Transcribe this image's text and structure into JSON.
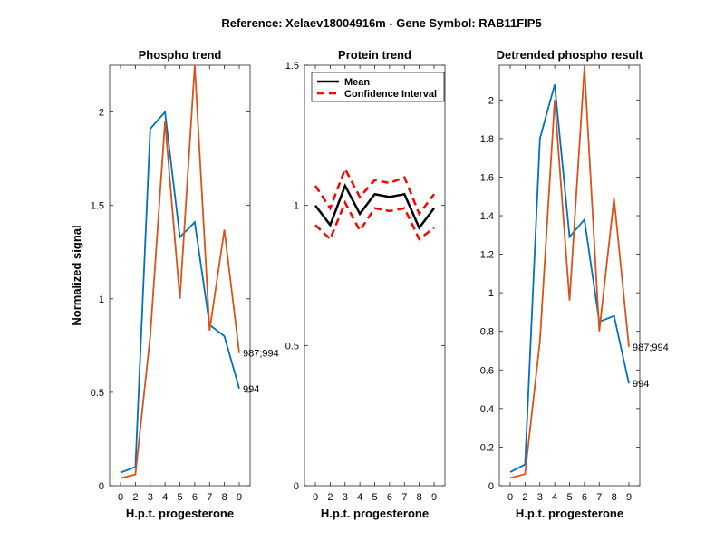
{
  "figure_title": "Reference:  Xelaev18004916m - Gene Symbol:  RAB11FIP5",
  "colors": {
    "blue": "#0072BD",
    "orange": "#D95319",
    "black": "#000000",
    "red": "#FF0000"
  },
  "chart_data": [
    {
      "type": "line",
      "title": "Phospho trend",
      "xlabel": "H.p.t. progesterone",
      "ylabel": "Normalized signal",
      "categories": [
        "0",
        "2",
        "3",
        "4",
        "5",
        "6",
        "7",
        "8",
        "9"
      ],
      "ylim": [
        0,
        2.25
      ],
      "yticks": [
        0,
        0.5,
        1,
        1.5,
        2
      ],
      "ytick_labels": [
        "0",
        "0.5",
        "1",
        "1.5",
        "2"
      ],
      "series": [
        {
          "name": "994",
          "color": "#0072BD",
          "values": [
            0.07,
            0.1,
            1.91,
            2.0,
            1.33,
            1.41,
            0.86,
            0.8,
            0.52
          ],
          "end_label": "994"
        },
        {
          "name": "987;994",
          "color": "#D95319",
          "values": [
            0.04,
            0.06,
            0.8,
            1.95,
            1.0,
            2.25,
            0.83,
            1.37,
            0.71
          ],
          "end_label": "987;994"
        }
      ]
    },
    {
      "type": "line",
      "title": "Protein trend",
      "xlabel": "H.p.t. progesterone",
      "ylabel": "",
      "categories": [
        "0",
        "2",
        "3",
        "4",
        "5",
        "6",
        "7",
        "8",
        "9"
      ],
      "ylim": [
        0,
        1.5
      ],
      "yticks": [
        0,
        0.5,
        1,
        1.5
      ],
      "ytick_labels": [
        "0",
        "0.5",
        "1",
        "1.5"
      ],
      "legend": {
        "placement": "top-left",
        "entries": [
          "Mean",
          "Confidence Interval"
        ]
      },
      "series": [
        {
          "name": "Mean",
          "color": "#000000",
          "style": "solid",
          "values": [
            1.0,
            0.93,
            1.07,
            0.97,
            1.04,
            1.03,
            1.04,
            0.92,
            0.99
          ]
        },
        {
          "name": "Confidence Interval",
          "color": "#FF0000",
          "style": "dashed",
          "values": [
            1.07,
            0.99,
            1.13,
            1.03,
            1.09,
            1.08,
            1.1,
            0.97,
            1.04
          ]
        },
        {
          "name": "Confidence Interval (lower)",
          "color": "#FF0000",
          "style": "dashed",
          "values": [
            0.93,
            0.88,
            1.01,
            0.91,
            0.99,
            0.98,
            0.99,
            0.88,
            0.92
          ]
        }
      ]
    },
    {
      "type": "line",
      "title": "Detrended phospho result",
      "xlabel": "H.p.t. progesterone",
      "ylabel": "",
      "categories": [
        "0",
        "2",
        "3",
        "4",
        "5",
        "6",
        "7",
        "8",
        "9"
      ],
      "ylim": [
        0,
        2.18
      ],
      "yticks": [
        0,
        0.2,
        0.4,
        0.6,
        0.8,
        1,
        1.2,
        1.4,
        1.6,
        1.8,
        2
      ],
      "ytick_labels": [
        "0",
        "0.2",
        "0.4",
        "0.6",
        "0.8",
        "1",
        "1.2",
        "1.4",
        "1.6",
        "1.8",
        "2"
      ],
      "series": [
        {
          "name": "994",
          "color": "#0072BD",
          "values": [
            0.07,
            0.11,
            1.8,
            2.08,
            1.29,
            1.38,
            0.85,
            0.88,
            0.53
          ],
          "end_label": "994"
        },
        {
          "name": "987;994",
          "color": "#D95319",
          "values": [
            0.04,
            0.06,
            0.75,
            2.0,
            0.96,
            2.17,
            0.8,
            1.49,
            0.72
          ],
          "end_label": "987;994"
        }
      ]
    }
  ]
}
